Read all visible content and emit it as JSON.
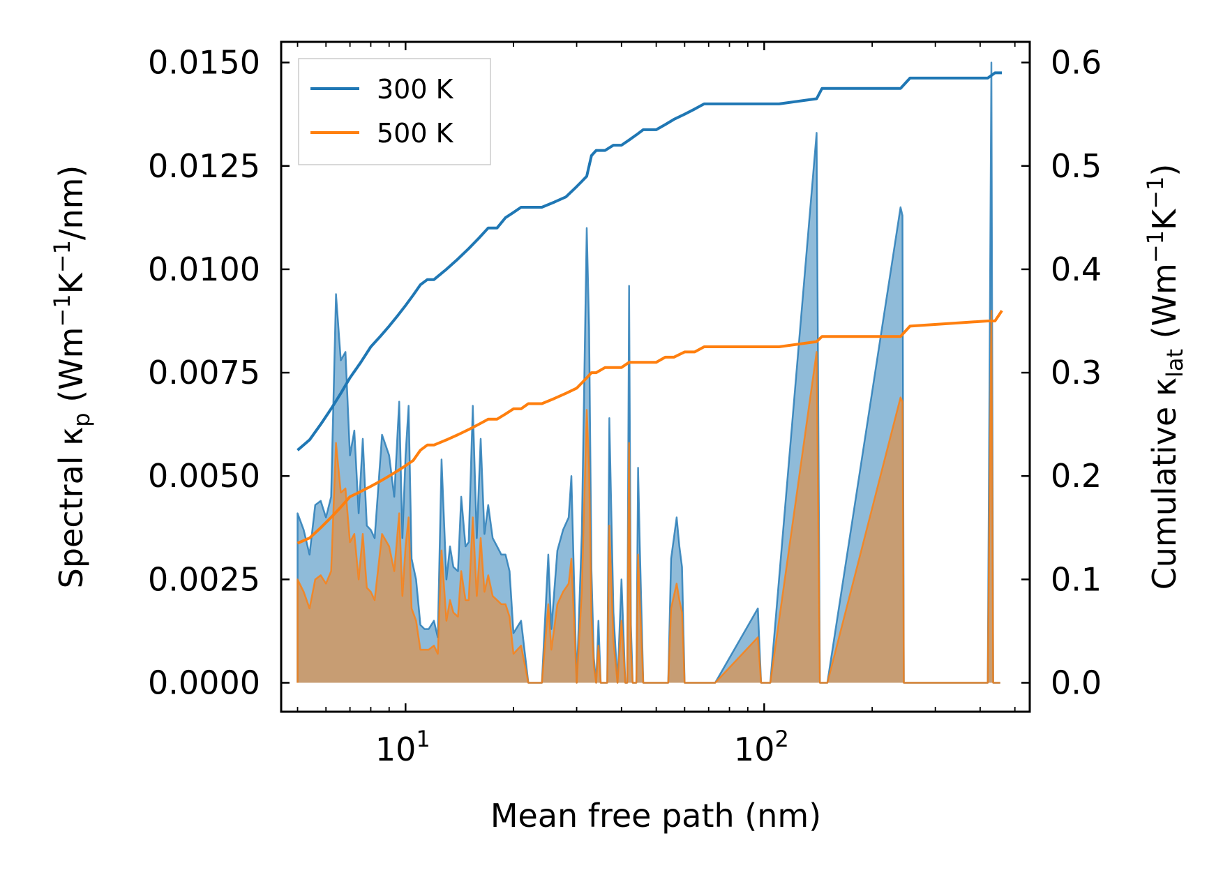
{
  "chart_data": {
    "type": "line+area",
    "title": "",
    "xlabel": "Mean free path (nm)",
    "ylabel_left": {
      "prefix": "Spectral κ",
      "sub": "p",
      "suffix": " (Wm",
      "sup1": "−1",
      "mid": "K",
      "sup2": "−1",
      "end": "/nm)"
    },
    "ylabel_right": {
      "prefix": "Cumulative κ",
      "sub": "lat",
      "suffix": " (Wm",
      "sup1": "−1",
      "mid": "K",
      "sup2": "−1",
      "end": ")"
    },
    "x_scale": "log",
    "xlim": [
      4.5,
      550
    ],
    "ylim_left": [
      -0.0007,
      0.0155
    ],
    "ylim_right": [
      -0.028,
      0.62
    ],
    "x_major_ticks": [
      {
        "value": 10,
        "base": "10",
        "exp": "1"
      },
      {
        "value": 100,
        "base": "10",
        "exp": "2"
      }
    ],
    "x_minor_ticks": [
      5,
      6,
      7,
      8,
      9,
      20,
      30,
      40,
      50,
      60,
      70,
      80,
      90,
      200,
      300,
      400,
      500
    ],
    "y_left_ticks": [
      {
        "value": 0.0,
        "label": "0.0000"
      },
      {
        "value": 0.0025,
        "label": "0.0025"
      },
      {
        "value": 0.005,
        "label": "0.0050"
      },
      {
        "value": 0.0075,
        "label": "0.0075"
      },
      {
        "value": 0.01,
        "label": "0.0100"
      },
      {
        "value": 0.0125,
        "label": "0.0125"
      },
      {
        "value": 0.015,
        "label": "0.0150"
      }
    ],
    "y_right_ticks": [
      {
        "value": 0.0,
        "label": "0.0"
      },
      {
        "value": 0.1,
        "label": "0.1"
      },
      {
        "value": 0.2,
        "label": "0.2"
      },
      {
        "value": 0.3,
        "label": "0.3"
      },
      {
        "value": 0.4,
        "label": "0.4"
      },
      {
        "value": 0.5,
        "label": "0.5"
      },
      {
        "value": 0.6,
        "label": "0.6"
      }
    ],
    "legend": {
      "placement": "top-left",
      "entries": [
        {
          "label": "300 K",
          "color": "#1f77b4"
        },
        {
          "label": "500 K",
          "color": "#ff7f0e"
        }
      ]
    },
    "spectral_series": [
      {
        "name": "300 K",
        "color": "#1f77b4",
        "fill": "#1f77b4",
        "fill_opacity": 0.5,
        "x": [
          5.0,
          5.0,
          5.2,
          5.4,
          5.6,
          5.8,
          6.0,
          6.2,
          6.4,
          6.6,
          6.8,
          7.0,
          7.2,
          7.4,
          7.6,
          7.8,
          8.0,
          8.2,
          8.6,
          9.0,
          9.3,
          9.6,
          9.8,
          10.0,
          10.2,
          10.4,
          10.7,
          11.0,
          11.3,
          11.6,
          12.0,
          12.3,
          12.6,
          13.0,
          13.3,
          13.6,
          14.0,
          14.3,
          14.7,
          15.0,
          15.4,
          15.8,
          16.2,
          16.6,
          17.0,
          17.5,
          18.0,
          18.5,
          19.0,
          19.5,
          20.0,
          21.0,
          22.0,
          22.5,
          24.0,
          25.0,
          25.5,
          26.5,
          27.5,
          28.5,
          29.0,
          30.0,
          31.0,
          32.0,
          32.5,
          33.0,
          33.5,
          34.0,
          34.5,
          35.0,
          36.0,
          36.5,
          37.0,
          38.0,
          39.0,
          40.0,
          41.0,
          41.5,
          42.0,
          42.5,
          43.0,
          44.0,
          44.5,
          45.0,
          46.0,
          47.0,
          48.0,
          49.0,
          50.0,
          51.0,
          52.0,
          53.0,
          54.0,
          55.0,
          56.0,
          57.0,
          58.0,
          59.0,
          60.0,
          61.0,
          62.0,
          64.0,
          65.0,
          67.0,
          68.0,
          69.0,
          70.0,
          71.0,
          72.0,
          73.0,
          96.0,
          98.0,
          100.0,
          102.0,
          104.0,
          140.0,
          143.0,
          145.0,
          148.0,
          150.0,
          240.0,
          243.0,
          245.0,
          248.0,
          250.0,
          252.0,
          255.0,
          265.0,
          420.0,
          430.0,
          435.0,
          440.0,
          445.0,
          450.0,
          455.0
        ],
        "y": [
          0.0,
          0.0041,
          0.0037,
          0.0031,
          0.0043,
          0.0044,
          0.004,
          0.0045,
          0.0094,
          0.0078,
          0.008,
          0.0055,
          0.0061,
          0.0041,
          0.0059,
          0.0038,
          0.0037,
          0.0035,
          0.006,
          0.0055,
          0.0045,
          0.0068,
          0.0035,
          0.0055,
          0.0067,
          0.003,
          0.0025,
          0.0014,
          0.0013,
          0.0013,
          0.0015,
          0.0011,
          0.0054,
          0.0025,
          0.0033,
          0.0028,
          0.0027,
          0.0045,
          0.0033,
          0.0034,
          0.0067,
          0.0035,
          0.0059,
          0.0036,
          0.0043,
          0.0035,
          0.0033,
          0.0031,
          0.0031,
          0.0027,
          0.0012,
          0.0015,
          0.0,
          0.0,
          0.0,
          0.0031,
          0.0013,
          0.0032,
          0.0037,
          0.004,
          0.005,
          0.0,
          0.0036,
          0.011,
          0.0086,
          0.0027,
          0.0006,
          0.0,
          0.0015,
          0.0,
          0.0,
          0.0,
          0.0064,
          0.0017,
          0.0,
          0.0025,
          0.0,
          0.0,
          0.0096,
          0.0014,
          0.0,
          0.0,
          0.0052,
          0.0033,
          0.0,
          0.0,
          0.0,
          0.0,
          0.0,
          0.0,
          0.0,
          0.0,
          0.0,
          0.003,
          0.0035,
          0.004,
          0.0033,
          0.0028,
          0.0,
          0.0,
          0.0,
          0.0,
          0.0,
          0.0,
          0.0,
          0.0,
          0.0,
          0.0,
          0.0,
          0.0,
          0.0018,
          0.0,
          0.0,
          0.0,
          0.0,
          0.0133,
          0.0,
          0.0,
          0.0,
          0.0,
          0.0115,
          0.0113,
          0.0,
          0.0,
          0.0,
          0.0,
          0.0,
          0.0,
          0.0,
          0.015,
          0.0,
          0.0,
          0.0,
          0.0,
          0.0
        ]
      },
      {
        "name": "500 K",
        "color": "#ff7f0e",
        "fill": "#ff7f0e",
        "fill_opacity": 0.5,
        "x": [
          5.0,
          5.0,
          5.2,
          5.4,
          5.6,
          5.8,
          6.0,
          6.2,
          6.4,
          6.6,
          6.8,
          7.0,
          7.2,
          7.4,
          7.6,
          7.8,
          8.0,
          8.2,
          8.6,
          9.0,
          9.3,
          9.6,
          9.8,
          10.0,
          10.2,
          10.4,
          10.7,
          11.0,
          11.3,
          11.6,
          12.0,
          12.3,
          12.6,
          13.0,
          13.3,
          13.6,
          14.0,
          14.3,
          14.7,
          15.0,
          15.4,
          15.8,
          16.2,
          16.6,
          17.0,
          17.5,
          18.0,
          18.5,
          19.0,
          19.5,
          20.0,
          21.0,
          22.0,
          22.5,
          24.0,
          25.0,
          25.5,
          26.5,
          27.5,
          28.5,
          29.0,
          30.0,
          31.0,
          32.0,
          32.5,
          33.0,
          33.5,
          34.0,
          34.5,
          35.0,
          36.0,
          36.5,
          37.0,
          38.0,
          39.0,
          40.0,
          41.0,
          41.5,
          42.0,
          42.5,
          43.0,
          44.0,
          44.5,
          45.0,
          46.0,
          47.0,
          48.0,
          49.0,
          50.0,
          51.0,
          52.0,
          53.0,
          54.0,
          55.0,
          56.0,
          57.0,
          58.0,
          59.0,
          60.0,
          61.0,
          62.0,
          64.0,
          65.0,
          67.0,
          68.0,
          69.0,
          70.0,
          71.0,
          72.0,
          73.0,
          96.0,
          98.0,
          100.0,
          102.0,
          104.0,
          140.0,
          143.0,
          145.0,
          148.0,
          150.0,
          240.0,
          243.0,
          245.0,
          248.0,
          250.0,
          252.0,
          255.0,
          265.0,
          420.0,
          430.0,
          435.0,
          440.0,
          445.0,
          450.0,
          455.0
        ],
        "y": [
          0.0,
          0.0025,
          0.0022,
          0.0018,
          0.0025,
          0.0026,
          0.0024,
          0.0027,
          0.0058,
          0.0046,
          0.0047,
          0.0034,
          0.0036,
          0.0025,
          0.0036,
          0.0023,
          0.0022,
          0.002,
          0.0036,
          0.0033,
          0.0027,
          0.0041,
          0.0021,
          0.0033,
          0.004,
          0.0018,
          0.0015,
          0.0008,
          0.0008,
          0.0008,
          0.0009,
          0.0007,
          0.0032,
          0.0015,
          0.002,
          0.0017,
          0.0016,
          0.0027,
          0.002,
          0.002,
          0.004,
          0.0021,
          0.0035,
          0.0022,
          0.0026,
          0.0021,
          0.002,
          0.0019,
          0.0019,
          0.0016,
          0.0007,
          0.0009,
          0.0,
          0.0,
          0.0,
          0.0019,
          0.0008,
          0.0019,
          0.0022,
          0.0024,
          0.003,
          0.0,
          0.0022,
          0.0066,
          0.0052,
          0.0016,
          0.0004,
          0.0,
          0.0009,
          0.0,
          0.0,
          0.0,
          0.0038,
          0.001,
          0.0,
          0.0015,
          0.0,
          0.0,
          0.0058,
          0.0008,
          0.0,
          0.0,
          0.0031,
          0.002,
          0.0,
          0.0,
          0.0,
          0.0,
          0.0,
          0.0,
          0.0,
          0.0,
          0.0,
          0.0018,
          0.0021,
          0.0024,
          0.002,
          0.0017,
          0.0,
          0.0,
          0.0,
          0.0,
          0.0,
          0.0,
          0.0,
          0.0,
          0.0,
          0.0,
          0.0,
          0.0,
          0.0011,
          0.0,
          0.0,
          0.0,
          0.0,
          0.008,
          0.0,
          0.0,
          0.0,
          0.0,
          0.0069,
          0.0068,
          0.0,
          0.0,
          0.0,
          0.0,
          0.0,
          0.0,
          0.0,
          0.009,
          0.0,
          0.0,
          0.0,
          0.0,
          0.0
        ]
      }
    ],
    "cumulative_series": [
      {
        "name": "300 K",
        "color": "#1f77b4",
        "x": [
          5.0,
          5.4,
          5.8,
          6.2,
          6.6,
          7.0,
          7.5,
          8.0,
          8.5,
          9.0,
          9.5,
          10.0,
          10.5,
          11.0,
          11.5,
          12.0,
          13.0,
          14.0,
          15.0,
          16.0,
          17.0,
          18.0,
          19.0,
          20.0,
          21.0,
          22.0,
          24.0,
          26.0,
          28.0,
          30.0,
          31.0,
          32.0,
          33.0,
          34.0,
          36.0,
          38.0,
          40.0,
          42.0,
          44.0,
          46.0,
          48.0,
          50.0,
          53.0,
          56.0,
          60.0,
          64.0,
          68.0,
          72.0,
          80.0,
          90.0,
          100.0,
          110.0,
          140.0,
          145.0,
          240.0,
          255.0,
          420.0,
          440.0,
          460.0
        ],
        "y": [
          0.225,
          0.235,
          0.25,
          0.265,
          0.28,
          0.295,
          0.31,
          0.325,
          0.335,
          0.345,
          0.355,
          0.365,
          0.375,
          0.385,
          0.39,
          0.39,
          0.4,
          0.41,
          0.42,
          0.43,
          0.44,
          0.44,
          0.45,
          0.455,
          0.46,
          0.46,
          0.46,
          0.465,
          0.47,
          0.48,
          0.485,
          0.49,
          0.51,
          0.515,
          0.515,
          0.52,
          0.52,
          0.525,
          0.53,
          0.535,
          0.535,
          0.535,
          0.54,
          0.545,
          0.55,
          0.555,
          0.56,
          0.56,
          0.56,
          0.56,
          0.56,
          0.56,
          0.565,
          0.575,
          0.575,
          0.585,
          0.585,
          0.59,
          0.59
        ]
      },
      {
        "name": "500 K",
        "color": "#ff7f0e",
        "x": [
          5.0,
          5.4,
          5.8,
          6.2,
          6.6,
          7.0,
          7.5,
          8.0,
          8.5,
          9.0,
          9.5,
          10.0,
          10.5,
          11.0,
          11.5,
          12.0,
          13.0,
          14.0,
          15.0,
          16.0,
          17.0,
          18.0,
          19.0,
          20.0,
          21.0,
          22.0,
          24.0,
          26.0,
          28.0,
          30.0,
          31.0,
          32.0,
          33.0,
          34.0,
          36.0,
          38.0,
          40.0,
          42.0,
          44.0,
          46.0,
          48.0,
          50.0,
          53.0,
          56.0,
          60.0,
          64.0,
          68.0,
          72.0,
          80.0,
          90.0,
          100.0,
          110.0,
          140.0,
          145.0,
          240.0,
          255.0,
          420.0,
          440.0,
          460.0
        ],
        "y": [
          0.135,
          0.14,
          0.15,
          0.16,
          0.17,
          0.18,
          0.185,
          0.19,
          0.195,
          0.2,
          0.205,
          0.21,
          0.215,
          0.225,
          0.23,
          0.23,
          0.235,
          0.24,
          0.245,
          0.25,
          0.255,
          0.255,
          0.26,
          0.265,
          0.265,
          0.27,
          0.27,
          0.275,
          0.28,
          0.285,
          0.29,
          0.295,
          0.3,
          0.3,
          0.305,
          0.305,
          0.305,
          0.31,
          0.31,
          0.31,
          0.31,
          0.31,
          0.315,
          0.315,
          0.32,
          0.32,
          0.325,
          0.325,
          0.325,
          0.325,
          0.325,
          0.325,
          0.33,
          0.335,
          0.335,
          0.345,
          0.35,
          0.35,
          0.36
        ]
      }
    ]
  }
}
